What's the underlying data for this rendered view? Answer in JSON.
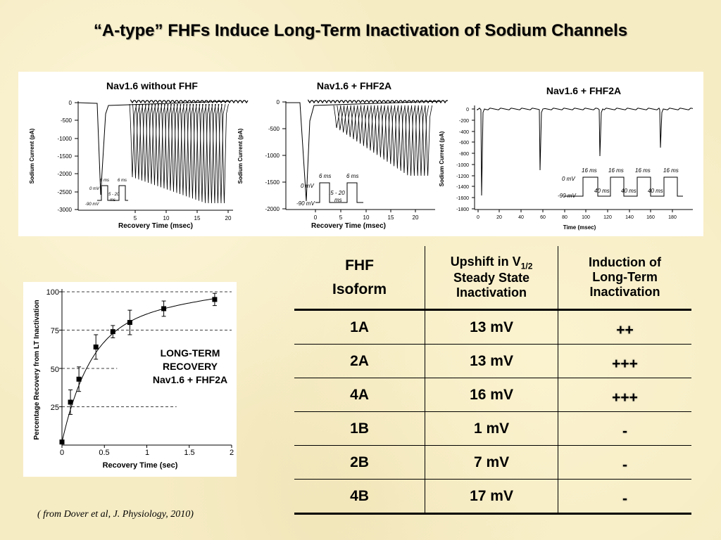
{
  "slide": {
    "title": "“A-type” FHFs Induce Long-Term Inactivation of Sodium Channels",
    "citation": "( from Dover et al, J. Physiology, 2010)"
  },
  "panels": {
    "a": {
      "title": "Nav1.6 without FHF",
      "ylabel": "Sodium Current (pA)",
      "xlabel": "Recovery Time (msec)",
      "yticks": [
        "0",
        "-500",
        "-1000",
        "-1500",
        "-2000",
        "-2500",
        "-3000"
      ],
      "xticks": [
        "5",
        "10",
        "15",
        "20"
      ],
      "protocol": {
        "v0": "0 mV",
        "v90": "-90 mV",
        "p1": "6 ms",
        "p2": "6 ms",
        "gap1": "5 - 20",
        "gap2": "ms"
      }
    },
    "b": {
      "title": "Nav1.6 + FHF2A",
      "ylabel": "Sodium Current (pA)",
      "xlabel": "Recovery Time (msec)",
      "yticks": [
        "0",
        "-500",
        "-1000",
        "-1500",
        "-2000"
      ],
      "xticks": [
        "0",
        "5",
        "10",
        "15",
        "20"
      ],
      "protocol": {
        "v0": "0 mV",
        "v90": "-90 mV",
        "p1": "6 ms",
        "p2": "6 ms",
        "gap1": ".5 - 20",
        "gap2": "ms"
      }
    },
    "c": {
      "title": "Nav1.6 + FHF2A",
      "ylabel": "Sodium Current (pA)",
      "xlabel": "Time (msec)",
      "yticks": [
        "0",
        "-200",
        "-400",
        "-600",
        "-800",
        "-1000",
        "-1200",
        "-1400",
        "-1600",
        "-1800"
      ],
      "xticks": [
        "0",
        "20",
        "40",
        "60",
        "80",
        "100",
        "120",
        "140",
        "160",
        "180"
      ],
      "protocol": {
        "v0": "0 mV",
        "v90": "-90 mV",
        "pulse": "16 ms",
        "gap": "40 ms"
      }
    }
  },
  "chart_data": {
    "type": "scatter",
    "title": "",
    "annotation": [
      "LONG-TERM",
      "RECOVERY",
      "Nav1.6 + FHF2A"
    ],
    "xlabel": "Recovery Time (sec)",
    "ylabel": "Percentage Recovery from LT Inactivation",
    "xlim": [
      0,
      2
    ],
    "ylim": [
      0,
      100
    ],
    "xticks": [
      "0",
      "0.5",
      "1",
      "1.5",
      "2"
    ],
    "yticks": [
      "25",
      "50",
      "75",
      "100"
    ],
    "dashed_gridlines_y": [
      25,
      50,
      75,
      100
    ],
    "x": [
      0,
      0.1,
      0.2,
      0.4,
      0.6,
      0.8,
      1.2,
      1.8
    ],
    "y": [
      2,
      28,
      43,
      64,
      74,
      80,
      89,
      95
    ],
    "error": [
      0,
      8,
      8,
      8,
      4,
      8,
      5,
      4
    ]
  },
  "table": {
    "headers": {
      "col1_line1": "FHF",
      "col1_line2": "Isoform",
      "col2_line1_main": "Upshift in V",
      "col2_line1_sub": "1/2",
      "col2_line2": "Steady State",
      "col2_line3": "Inactivation",
      "col3_line1": "Induction of",
      "col3_line2": "Long-Term",
      "col3_line3": "Inactivation"
    },
    "rows": [
      {
        "isoform": "1A",
        "upshift": "13 mV",
        "induction": "++"
      },
      {
        "isoform": "2A",
        "upshift": "13 mV",
        "induction": "+++"
      },
      {
        "isoform": "4A",
        "upshift": "16 mV",
        "induction": "+++"
      },
      {
        "isoform": "1B",
        "upshift": "1 mV",
        "induction": "-"
      },
      {
        "isoform": "2B",
        "upshift": "7 mV",
        "induction": "-"
      },
      {
        "isoform": "4B",
        "upshift": "17 mV",
        "induction": "-"
      }
    ]
  }
}
